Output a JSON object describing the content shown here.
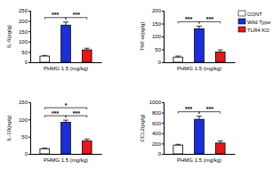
{
  "chart_data": [
    {
      "type": "bar",
      "ylabel": "IL-6(pg/g)",
      "categories": [
        "PHMG 1.5 (mg/kg)"
      ],
      "ylim": [
        0,
        250
      ],
      "yticks": [
        0,
        50,
        100,
        150,
        200,
        250
      ],
      "legend": "upper right",
      "series": [
        {
          "name": "CONT",
          "color": "#ffffff",
          "values": [
            30
          ],
          "errors": [
            3
          ]
        },
        {
          "name": "Wild Type",
          "color": "#1c2fd6",
          "values": [
            180
          ],
          "errors": [
            15
          ]
        },
        {
          "name": "TLR4 KO",
          "color": "#e3191c",
          "values": [
            60
          ],
          "errors": [
            8
          ]
        }
      ],
      "annotations": [
        {
          "text": "***",
          "from": 0,
          "to": 1
        },
        {
          "text": "***",
          "from": 1,
          "to": 2
        }
      ]
    },
    {
      "type": "bar",
      "ylabel": "TNF-α(pg/g)",
      "categories": [
        "PHMG 1.5 (mg/kg)"
      ],
      "ylim": [
        0,
        200
      ],
      "yticks": [
        0,
        50,
        100,
        150,
        200
      ],
      "series": [
        {
          "color": "#ffffff",
          "values": [
            20
          ],
          "errors": [
            4
          ]
        },
        {
          "color": "#1c2fd6",
          "values": [
            130
          ],
          "errors": [
            10
          ]
        },
        {
          "color": "#e3191c",
          "values": [
            40
          ],
          "errors": [
            8
          ]
        }
      ],
      "annotations": [
        {
          "text": "***",
          "from": 0,
          "to": 1
        },
        {
          "text": "***",
          "from": 1,
          "to": 2
        }
      ]
    },
    {
      "type": "bar",
      "ylabel": "IL-10(pg/g)",
      "categories": [
        "PHMG 1.5 (mg/kg)"
      ],
      "ylim": [
        0,
        150
      ],
      "yticks": [
        0,
        50,
        100,
        150
      ],
      "series": [
        {
          "color": "#ffffff",
          "values": [
            15
          ],
          "errors": [
            2
          ]
        },
        {
          "color": "#1c2fd6",
          "values": [
            92
          ],
          "errors": [
            6
          ]
        },
        {
          "color": "#e3191c",
          "values": [
            38
          ],
          "errors": [
            5
          ]
        }
      ],
      "annotations": [
        {
          "text": "***",
          "from": 0,
          "to": 1
        },
        {
          "text": "***",
          "from": 1,
          "to": 2
        },
        {
          "text": "*",
          "from": 0,
          "to": 2
        }
      ]
    },
    {
      "type": "bar",
      "ylabel": "CCL2(pg/g)",
      "categories": [
        "PHMG 1.5 (mg/kg)"
      ],
      "ylim": [
        0,
        1000
      ],
      "yticks": [
        0,
        200,
        400,
        600,
        800,
        1000
      ],
      "series": [
        {
          "color": "#ffffff",
          "values": [
            170
          ],
          "errors": [
            15
          ]
        },
        {
          "color": "#1c2fd6",
          "values": [
            670
          ],
          "errors": [
            60
          ]
        },
        {
          "color": "#e3191c",
          "values": [
            210
          ],
          "errors": [
            40
          ]
        }
      ],
      "annotations": [
        {
          "text": "***",
          "from": 0,
          "to": 1
        },
        {
          "text": "***",
          "from": 1,
          "to": 2
        }
      ]
    }
  ]
}
